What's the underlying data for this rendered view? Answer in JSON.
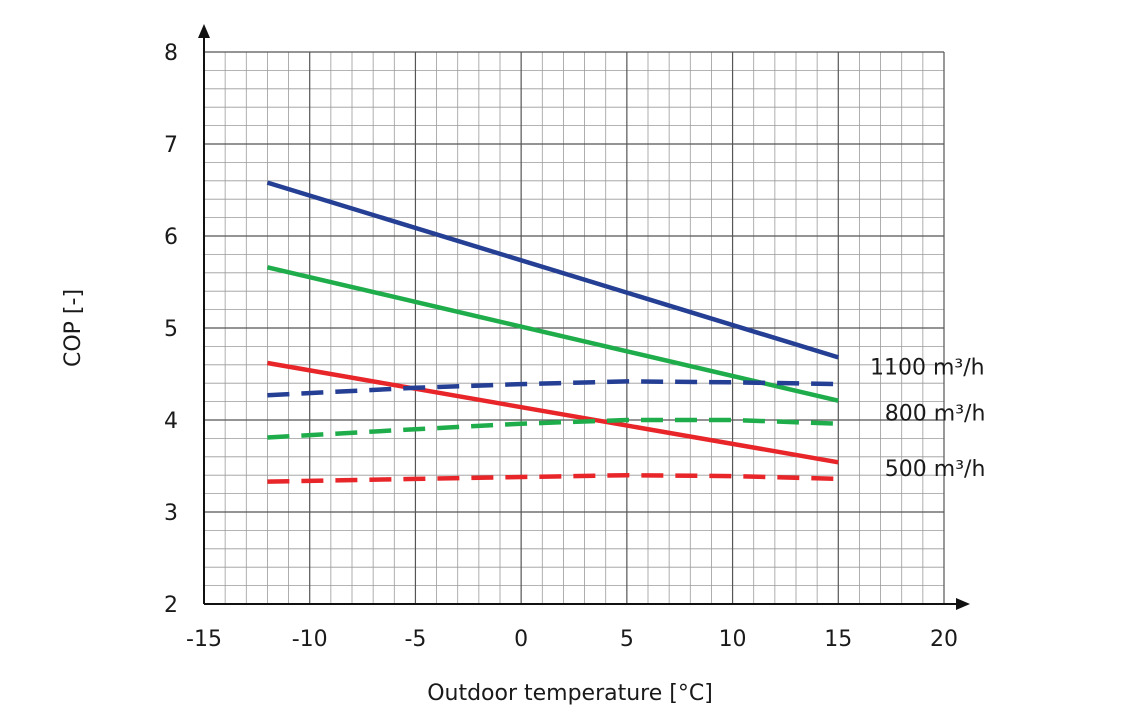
{
  "chart_data": {
    "type": "line",
    "title": "",
    "xlabel": "Outdoor temperature [°C]",
    "ylabel": "COP [-]",
    "xlim": [
      -15,
      20
    ],
    "ylim": [
      2,
      8
    ],
    "x_ticks": [
      "-15",
      "-10",
      "-5",
      "0",
      "5",
      "10",
      "15",
      "20"
    ],
    "y_ticks": [
      "2",
      "3",
      "4",
      "5",
      "6",
      "7",
      "8"
    ],
    "grid": true,
    "colors": {
      "blue": "#243f94",
      "green": "#1fad4b",
      "red": "#e8262a",
      "grid_minor": "#9a9a9a",
      "grid_major": "#555555",
      "axis": "#111111"
    },
    "series": [
      {
        "color": "#243f94",
        "style": "solid",
        "points": [
          [
            -12,
            6.58
          ],
          [
            15,
            4.68
          ]
        ]
      },
      {
        "color": "#1fad4b",
        "style": "solid",
        "points": [
          [
            -12,
            5.66
          ],
          [
            15,
            4.21
          ]
        ]
      },
      {
        "color": "#e8262a",
        "style": "solid",
        "points": [
          [
            -12,
            4.62
          ],
          [
            15,
            3.54
          ]
        ]
      },
      {
        "color": "#243f94",
        "style": "dashed",
        "points": [
          [
            -12,
            4.27
          ],
          [
            -5,
            4.35
          ],
          [
            0,
            4.39
          ],
          [
            5,
            4.42
          ],
          [
            10,
            4.41
          ],
          [
            15,
            4.39
          ]
        ]
      },
      {
        "color": "#1fad4b",
        "style": "dashed",
        "points": [
          [
            -12,
            3.81
          ],
          [
            -5,
            3.9
          ],
          [
            0,
            3.96
          ],
          [
            5,
            4.0
          ],
          [
            10,
            4.0
          ],
          [
            15,
            3.96
          ]
        ]
      },
      {
        "color": "#e8262a",
        "style": "dashed",
        "points": [
          [
            -12,
            3.33
          ],
          [
            -5,
            3.36
          ],
          [
            0,
            3.38
          ],
          [
            5,
            3.4
          ],
          [
            10,
            3.39
          ],
          [
            15,
            3.36
          ]
        ]
      }
    ],
    "annotations": [
      {
        "text": "1100 m³/h",
        "x": 16.5,
        "y": 4.58
      },
      {
        "text": "800 m³/h",
        "x": 17.2,
        "y": 4.08
      },
      {
        "text": "500 m³/h",
        "x": 17.2,
        "y": 3.48
      }
    ]
  }
}
